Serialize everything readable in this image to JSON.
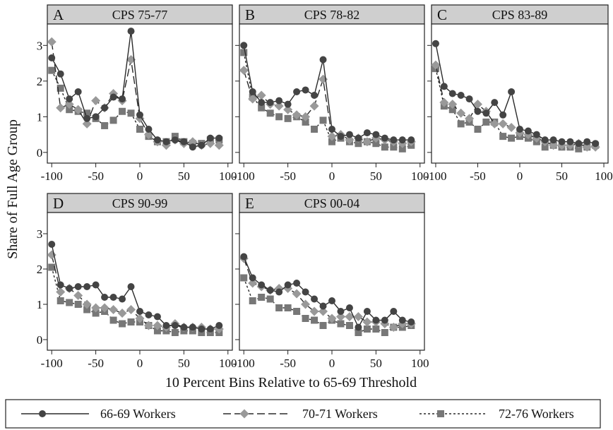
{
  "ylabel": "Share of Full Age Group",
  "xlabel": "10 Percent Bins Relative to 65-69 Threshold",
  "x_ticks": [
    "-100",
    "-50",
    "0",
    "50",
    "100"
  ],
  "y_ticks": [
    "0",
    "1",
    "2",
    "3"
  ],
  "legend": [
    {
      "label": "66-69 Workers",
      "marker": "circle",
      "dash": "solid",
      "color": "#444444"
    },
    {
      "label": "70-71 Workers",
      "marker": "diamond",
      "dash": "longdash",
      "color": "#999999"
    },
    {
      "label": "72-76 Workers",
      "marker": "square",
      "dash": "shortdash",
      "color": "#777777"
    }
  ],
  "chart_data": [
    {
      "type": "line",
      "panel": "A",
      "title": "CPS 75-77",
      "x": [
        -100,
        -90,
        -80,
        -70,
        -60,
        -50,
        -40,
        -30,
        -20,
        -10,
        0,
        10,
        20,
        30,
        40,
        50,
        60,
        70,
        80,
        90
      ],
      "xlim": [
        -105,
        105
      ],
      "ylim": [
        -0.3,
        3.6
      ],
      "series": [
        {
          "name": "66-69 Workers",
          "values": [
            2.65,
            2.2,
            1.5,
            1.7,
            0.95,
            1.0,
            1.25,
            1.55,
            1.5,
            3.4,
            1.05,
            0.65,
            0.35,
            0.3,
            0.35,
            0.3,
            0.15,
            0.2,
            0.4,
            0.4
          ]
        },
        {
          "name": "70-71 Workers",
          "values": [
            3.1,
            1.25,
            1.35,
            1.2,
            0.8,
            1.45,
            1.25,
            1.65,
            1.45,
            2.6,
            0.95,
            0.5,
            0.3,
            0.2,
            0.35,
            0.25,
            0.3,
            0.2,
            0.25,
            0.2
          ]
        },
        {
          "name": "72-76 Workers",
          "values": [
            2.3,
            1.8,
            1.2,
            1.15,
            1.1,
            0.95,
            0.75,
            0.9,
            1.15,
            1.1,
            0.65,
            0.45,
            0.3,
            0.3,
            0.45,
            0.3,
            0.25,
            0.25,
            0.35,
            0.35
          ]
        }
      ]
    },
    {
      "type": "line",
      "panel": "B",
      "title": "CPS 78-82",
      "x": [
        -100,
        -90,
        -80,
        -70,
        -60,
        -50,
        -40,
        -30,
        -20,
        -10,
        0,
        10,
        20,
        30,
        40,
        50,
        60,
        70,
        80,
        90
      ],
      "xlim": [
        -105,
        105
      ],
      "ylim": [
        -0.3,
        3.6
      ],
      "series": [
        {
          "name": "66-69 Workers",
          "values": [
            3.0,
            1.7,
            1.4,
            1.4,
            1.45,
            1.35,
            1.7,
            1.75,
            1.6,
            2.6,
            0.65,
            0.45,
            0.5,
            0.4,
            0.55,
            0.5,
            0.4,
            0.35,
            0.35,
            0.35
          ]
        },
        {
          "name": "70-71 Workers",
          "values": [
            2.3,
            1.5,
            1.6,
            1.35,
            1.3,
            1.2,
            1.05,
            1.0,
            1.3,
            2.05,
            0.45,
            0.5,
            0.35,
            0.4,
            0.3,
            0.4,
            0.35,
            0.3,
            0.25,
            0.3
          ]
        },
        {
          "name": "72-76 Workers",
          "values": [
            2.8,
            1.55,
            1.25,
            1.1,
            1.0,
            0.95,
            1.0,
            0.85,
            0.65,
            0.9,
            0.3,
            0.4,
            0.3,
            0.25,
            0.3,
            0.25,
            0.15,
            0.15,
            0.1,
            0.2
          ]
        }
      ]
    },
    {
      "type": "line",
      "panel": "C",
      "title": "CPS 83-89",
      "x": [
        -100,
        -90,
        -80,
        -70,
        -60,
        -50,
        -40,
        -30,
        -20,
        -10,
        0,
        10,
        20,
        30,
        40,
        50,
        60,
        70,
        80,
        90
      ],
      "xlim": [
        -105,
        105
      ],
      "ylim": [
        -0.3,
        3.6
      ],
      "series": [
        {
          "name": "66-69 Workers",
          "values": [
            3.05,
            1.85,
            1.65,
            1.6,
            1.5,
            1.15,
            1.1,
            1.4,
            1.05,
            1.7,
            0.65,
            0.6,
            0.5,
            0.35,
            0.35,
            0.3,
            0.3,
            0.25,
            0.3,
            0.25
          ]
        },
        {
          "name": "70-71 Workers",
          "values": [
            2.45,
            1.4,
            1.35,
            1.1,
            0.95,
            1.35,
            1.15,
            0.8,
            0.8,
            0.7,
            0.55,
            0.5,
            0.4,
            0.3,
            0.2,
            0.2,
            0.2,
            0.25,
            0.15,
            0.15
          ]
        },
        {
          "name": "72-76 Workers",
          "values": [
            2.35,
            1.3,
            1.2,
            0.8,
            0.85,
            0.65,
            0.85,
            0.85,
            0.45,
            0.4,
            0.45,
            0.4,
            0.3,
            0.15,
            0.2,
            0.15,
            0.15,
            0.1,
            0.15,
            0.2
          ]
        }
      ]
    },
    {
      "type": "line",
      "panel": "D",
      "title": "CPS 90-99",
      "x": [
        -100,
        -90,
        -80,
        -70,
        -60,
        -50,
        -40,
        -30,
        -20,
        -10,
        0,
        10,
        20,
        30,
        40,
        50,
        60,
        70,
        80,
        90
      ],
      "xlim": [
        -105,
        105
      ],
      "ylim": [
        -0.3,
        3.6
      ],
      "series": [
        {
          "name": "66-69 Workers",
          "values": [
            2.7,
            1.55,
            1.45,
            1.5,
            1.5,
            1.55,
            1.2,
            1.2,
            1.15,
            1.5,
            0.8,
            0.7,
            0.65,
            0.4,
            0.4,
            0.35,
            0.35,
            0.3,
            0.3,
            0.4
          ]
        },
        {
          "name": "70-71 Workers",
          "values": [
            2.4,
            1.35,
            1.45,
            1.25,
            1.0,
            0.9,
            0.9,
            0.85,
            0.75,
            0.85,
            0.6,
            0.4,
            0.4,
            0.35,
            0.45,
            0.35,
            0.35,
            0.35,
            0.3,
            0.3
          ]
        },
        {
          "name": "72-76 Workers",
          "values": [
            2.05,
            1.1,
            1.05,
            1.0,
            0.85,
            0.75,
            0.8,
            0.55,
            0.45,
            0.5,
            0.5,
            0.4,
            0.25,
            0.25,
            0.2,
            0.25,
            0.25,
            0.2,
            0.2,
            0.2
          ]
        }
      ]
    },
    {
      "type": "line",
      "panel": "E",
      "title": "CPS 00-04",
      "x": [
        -100,
        -90,
        -80,
        -70,
        -60,
        -50,
        -40,
        -30,
        -20,
        -10,
        0,
        10,
        20,
        30,
        40,
        50,
        60,
        70,
        80,
        90
      ],
      "xlim": [
        -105,
        105
      ],
      "ylim": [
        -0.3,
        3.6
      ],
      "series": [
        {
          "name": "66-69 Workers",
          "values": [
            2.35,
            1.75,
            1.55,
            1.4,
            1.35,
            1.55,
            1.6,
            1.35,
            1.15,
            0.95,
            1.1,
            0.8,
            0.9,
            0.35,
            0.8,
            0.55,
            0.55,
            0.8,
            0.55,
            0.5
          ]
        },
        {
          "name": "70-71 Workers",
          "values": [
            2.3,
            1.6,
            1.5,
            1.4,
            1.45,
            1.45,
            1.3,
            1.0,
            0.8,
            0.8,
            0.6,
            0.65,
            0.65,
            0.65,
            0.5,
            0.5,
            0.45,
            0.35,
            0.45,
            0.45
          ]
        },
        {
          "name": "72-76 Workers",
          "values": [
            1.75,
            1.1,
            1.2,
            1.15,
            0.9,
            0.9,
            0.8,
            0.6,
            0.55,
            0.4,
            0.55,
            0.45,
            0.4,
            0.2,
            0.3,
            0.3,
            0.2,
            0.35,
            0.35,
            0.4
          ]
        }
      ]
    }
  ]
}
